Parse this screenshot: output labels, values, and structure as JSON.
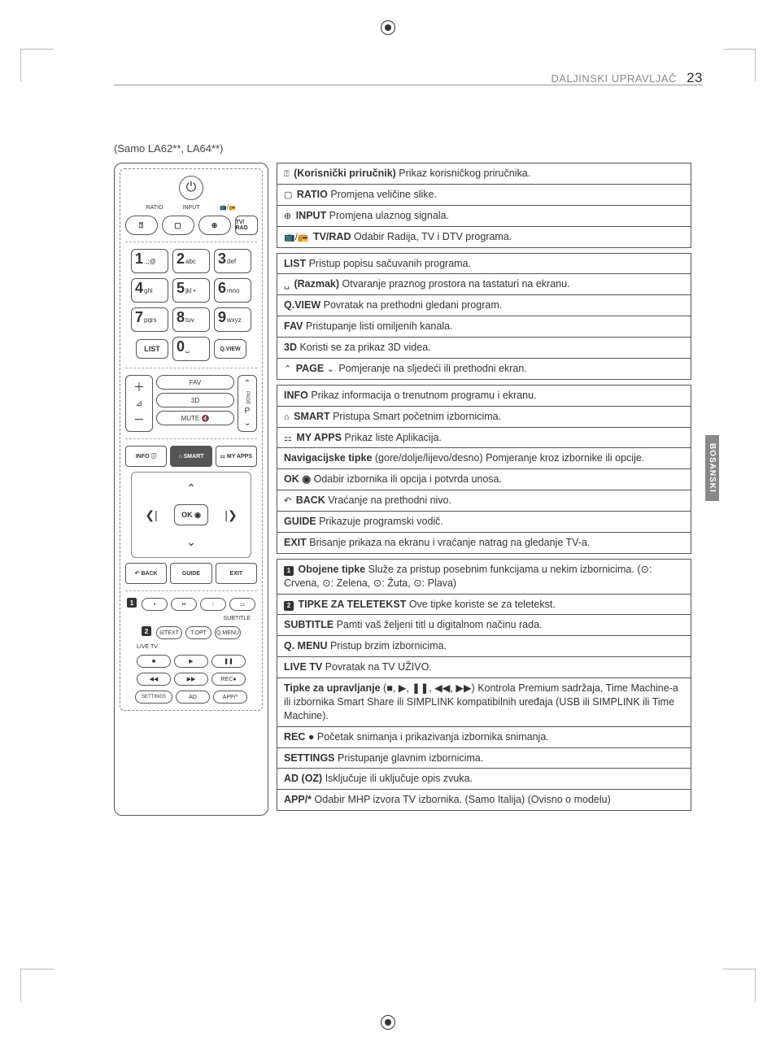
{
  "page": {
    "section_label": "DALJINSKI UPRAVLJAČ",
    "number": "23",
    "subtitle": "(Samo LA62**, LA64**)",
    "side_tab": "BOSANSKI"
  },
  "colors": {
    "text": "#333333",
    "muted": "#888888",
    "border": "#555555",
    "badge_bg": "#333333",
    "side_tab_bg": "#888888"
  },
  "remote": {
    "top_labels": {
      "ratio": "RATIO",
      "input": "INPUT",
      "tvrad_icon": "📺/📻",
      "tvrad": "TV/\nRAD"
    },
    "keypad": [
      {
        "n": "1",
        "s": ".,;@"
      },
      {
        "n": "2",
        "s": "abc"
      },
      {
        "n": "3",
        "s": "def"
      },
      {
        "n": "4",
        "s": "ghi"
      },
      {
        "n": "5",
        "s": "jkl •"
      },
      {
        "n": "6",
        "s": "mno"
      },
      {
        "n": "7",
        "s": "pqrs"
      },
      {
        "n": "8",
        "s": "tuv"
      },
      {
        "n": "9",
        "s": "wxyz"
      }
    ],
    "list": "LIST",
    "zero": "0",
    "space": "␣",
    "qview": "Q.VIEW",
    "fav": "FAV",
    "threeD": "3D",
    "p": "P",
    "mute": "MUTE 🔇",
    "info": "INFO ⓘ",
    "smart": "⌂\nSMART",
    "myapps": "⚏\nMY APPS",
    "ok": "OK\n◉",
    "back": "↶\nBACK",
    "guide": "GUIDE",
    "exit": "EXIT",
    "color_badge_1": "1",
    "color_badge_2": "2",
    "color_dots": [
      "•",
      "••",
      "⁝",
      "⚏"
    ],
    "text_btn": "⊟TEXT",
    "topt": "T.OPT",
    "qmenu": "Q.MENU",
    "subtitle_lbl": "SUBTITLE",
    "livetv": "LIVE TV",
    "play_row": [
      "■",
      "▶",
      "❚❚"
    ],
    "seek_row": [
      "◀◀",
      "▶▶",
      "REC●"
    ],
    "settings": "SETTINGS",
    "ad": "AD",
    "app": "APP/*"
  },
  "desc_group_1": [
    {
      "icon": "⍰",
      "bold": "(Korisnički priručnik)",
      "text": " Prikaz korisničkog priručnika."
    },
    {
      "icon": "▢",
      "bold": "RATIO",
      "text": " Promjena veličine slike."
    },
    {
      "icon": "⊕",
      "bold": "INPUT",
      "text": " Promjena ulaznog signala."
    },
    {
      "icon": "📺/📻",
      "bold": "TV/RAD",
      "text": " Odabir Radija, TV i DTV programa."
    }
  ],
  "desc_group_2": [
    {
      "bold": "LIST",
      "text": " Pristup popisu sačuvanih programa."
    },
    {
      "icon": "␣",
      "bold": "(Razmak)",
      "text": " Otvaranje praznog prostora na tastaturi na ekranu."
    },
    {
      "bold": "Q.VIEW",
      "text": " Povratak na prethodni gledani program."
    },
    {
      "bold": "FAV",
      "text": " Pristupanje listi omiljenih kanala."
    },
    {
      "bold": "3D",
      "text": " Koristi se za prikaz 3D videa."
    },
    {
      "icon": "⌃",
      "bold": "PAGE",
      "icon2": "⌄",
      "text": " Pomjeranje na sljedeći ili prethodni ekran."
    }
  ],
  "desc_group_3": [
    {
      "bold": "INFO",
      "text": " Prikaz informacija o trenutnom programu i ekranu."
    },
    {
      "icon": "⌂",
      "bold": "SMART",
      "text": " Pristupa Smart početnim izbornicima."
    },
    {
      "icon": "⚏",
      "bold": "MY APPS",
      "text": " Prikaz liste Aplikacija."
    },
    {
      "bold": "Navigacijske tipke",
      "text": " (gore/dolje/lijevo/desno) Pomjeranje kroz izbornike ili opcije."
    },
    {
      "bold": "OK ◉",
      "text": " Odabir izbornika ili opcija i potvrda unosa."
    },
    {
      "icon": "↶",
      "bold": "BACK",
      "text": " Vraćanje na prethodni nivo."
    },
    {
      "bold": "GUIDE",
      "text": " Prikazuje programski vodič."
    },
    {
      "bold": "EXIT",
      "text": "  Brisanje prikaza na ekranu i vraćanje natrag na gledanje TV-a."
    }
  ],
  "desc_group_4": [
    {
      "badge": "1",
      "bold": "Obojene tipke",
      "text": " Služe za pristup posebnim funkcijama u nekim izbornicima. (⊙: Crvena, ⊙: Zelena, ⊙: Žuta, ⊙: Plava)"
    },
    {
      "badge": "2",
      "bold": "TIPKE ZA TELETEKST",
      "text": " Ove tipke koriste se za teletekst."
    },
    {
      "bold": "SUBTITLE",
      "text": " Pamti vaš željeni titl u digitalnom načinu rada."
    },
    {
      "bold": "Q. MENU",
      "text": " Pristup brzim izbornicima."
    },
    {
      "bold": "LIVE TV",
      "text": " Povratak na TV UŽIVO."
    },
    {
      "bold": "Tipke za upravljanje",
      "text": " (■, ▶, ❚❚, ◀◀, ▶▶) Kontrola Premium sadržaja, Time Machine-a ili izbornika Smart Share ili SIMPLINK kompatibilnih uređaja (USB ili SIMPLINK ili Time Machine)."
    },
    {
      "bold": "REC ●",
      "text": " Početak snimanja i prikazivanja izbornika snimanja."
    },
    {
      "bold": "SETTINGS",
      "text": " Pristupanje glavnim izbornicima."
    },
    {
      "bold": "AD (OZ)",
      "text": " Isključuje ili uključuje opis zvuka."
    },
    {
      "bold": "APP/*",
      "text": " Odabir MHP izvora TV izbornika. (Samo Italija) (Ovisno o modelu)"
    }
  ]
}
